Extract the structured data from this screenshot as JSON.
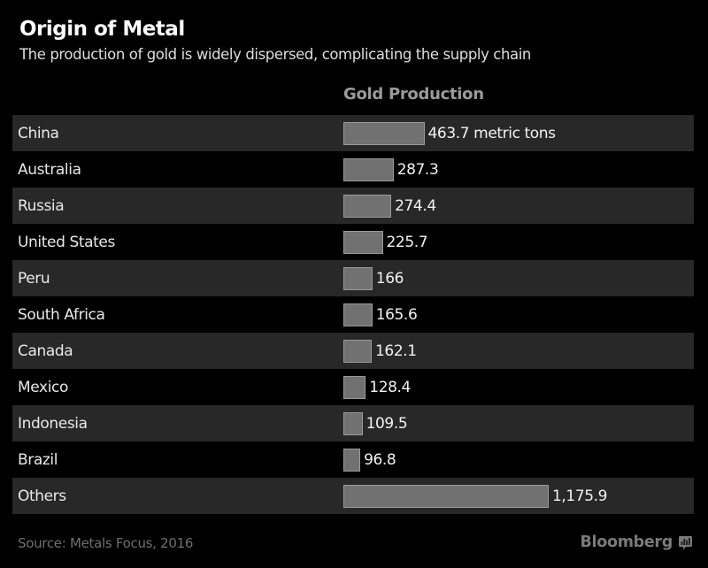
{
  "header": {
    "title": "Origin of Metal",
    "subtitle": "The production of gold is widely dispersed, complicating the supply chain"
  },
  "chart_data": {
    "type": "bar",
    "orientation": "horizontal",
    "title": "Origin of Metal",
    "subtitle": "The production of gold is widely dispersed, complicating the supply chain",
    "column_header": "Gold Production",
    "unit": "metric tons",
    "categories": [
      "China",
      "Australia",
      "Russia",
      "United States",
      "Peru",
      "South Africa",
      "Canada",
      "Mexico",
      "Indonesia",
      "Brazil",
      "Others"
    ],
    "values": [
      463.7,
      287.3,
      274.4,
      225.7,
      166,
      165.6,
      162.1,
      128.4,
      109.5,
      96.8,
      1175.9
    ],
    "value_labels": [
      "463.7 metric tons",
      "287.3",
      "274.4",
      "225.7",
      "166",
      "165.6",
      "162.1",
      "128.4",
      "109.5",
      "96.8",
      "1,175.9"
    ],
    "xlim": [
      0,
      1175.9
    ],
    "grid": false,
    "legend": false,
    "row_shading": "alternating, first row shaded"
  },
  "footer": {
    "source": "Source: Metals Focus, 2016",
    "brand": "Bloomberg"
  },
  "colors": {
    "background": "#000000",
    "row_alt": "#282828",
    "bar_fill": "#717171",
    "bar_border": "#9a9a9a",
    "title_text": "#ffffff",
    "subtitle_text": "#dedede",
    "label_text": "#e8e8e8",
    "value_text": "#f2f2f2",
    "column_header_text": "#9a9a9a",
    "source_text": "#6f6f6f",
    "brand_text": "#7a7a7a"
  }
}
